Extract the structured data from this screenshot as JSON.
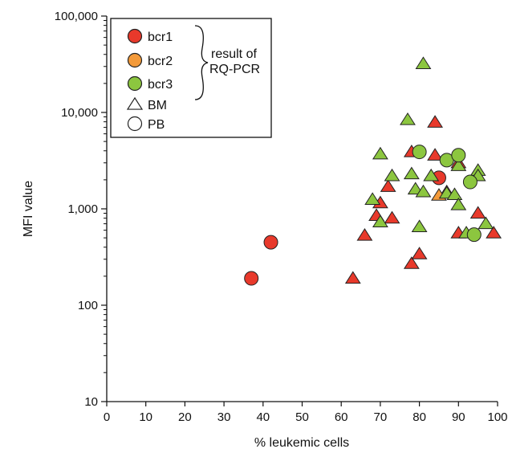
{
  "chart_data": {
    "type": "scatter",
    "title": "",
    "xlabel": "% leukemic cells",
    "ylabel": "MFI value",
    "xlim": [
      0,
      100
    ],
    "ylim": [
      10,
      100000
    ],
    "yscale": "log",
    "grid": false,
    "legend_position": "top-left",
    "x_ticks": [
      {
        "value": 0,
        "label": "0"
      },
      {
        "value": 10,
        "label": "10"
      },
      {
        "value": 20,
        "label": "20"
      },
      {
        "value": 30,
        "label": "30"
      },
      {
        "value": 40,
        "label": "40"
      },
      {
        "value": 50,
        "label": "50"
      },
      {
        "value": 60,
        "label": "60"
      },
      {
        "value": 70,
        "label": "70"
      },
      {
        "value": 80,
        "label": "80"
      },
      {
        "value": 90,
        "label": "90"
      },
      {
        "value": 100,
        "label": "100"
      }
    ],
    "y_ticks": [
      {
        "value": 10,
        "label": "10"
      },
      {
        "value": 100,
        "label": "100"
      },
      {
        "value": 1000,
        "label": "1,000"
      },
      {
        "value": 10000,
        "label": "10,000"
      },
      {
        "value": 100000,
        "label": "100,000"
      }
    ],
    "colors": {
      "bcr1": "#e8392b",
      "bcr2": "#f39a3a",
      "bcr3": "#8cc63f",
      "stroke": "#222222"
    },
    "legend": {
      "items": [
        {
          "label": "bcr1",
          "color": "#e8392b",
          "marker": "circle"
        },
        {
          "label": "bcr2",
          "color": "#f39a3a",
          "marker": "circle"
        },
        {
          "label": "bcr3",
          "color": "#8cc63f",
          "marker": "circle"
        },
        {
          "label": "BM",
          "color": "#ffffff",
          "marker": "triangle"
        },
        {
          "label": "PB",
          "color": "#ffffff",
          "marker": "circle"
        }
      ],
      "bracket_label_1": "result of",
      "bracket_label_2": "RQ-PCR"
    },
    "series": [
      {
        "name": "bcr1",
        "marker": "triangle",
        "color": "#e8392b",
        "points": [
          {
            "x": 63,
            "y": 190
          },
          {
            "x": 66,
            "y": 530
          },
          {
            "x": 69,
            "y": 850
          },
          {
            "x": 70,
            "y": 1150
          },
          {
            "x": 72,
            "y": 1700
          },
          {
            "x": 73,
            "y": 800
          },
          {
            "x": 78,
            "y": 3900
          },
          {
            "x": 78,
            "y": 270
          },
          {
            "x": 80,
            "y": 340
          },
          {
            "x": 84,
            "y": 3600
          },
          {
            "x": 84,
            "y": 7900
          },
          {
            "x": 87,
            "y": 1500
          },
          {
            "x": 90,
            "y": 3000
          },
          {
            "x": 90,
            "y": 560
          },
          {
            "x": 95,
            "y": 900
          },
          {
            "x": 99,
            "y": 560
          }
        ]
      },
      {
        "name": "bcr1",
        "marker": "circle",
        "color": "#e8392b",
        "points": [
          {
            "x": 37,
            "y": 190
          },
          {
            "x": 42,
            "y": 450
          },
          {
            "x": 85,
            "y": 2100
          }
        ]
      },
      {
        "name": "bcr2",
        "marker": "triangle",
        "color": "#f39a3a",
        "points": [
          {
            "x": 85,
            "y": 1380
          }
        ]
      },
      {
        "name": "bcr3",
        "marker": "triangle",
        "color": "#8cc63f",
        "points": [
          {
            "x": 68,
            "y": 1250
          },
          {
            "x": 70,
            "y": 3700
          },
          {
            "x": 70,
            "y": 730
          },
          {
            "x": 73,
            "y": 2200
          },
          {
            "x": 77,
            "y": 8400
          },
          {
            "x": 78,
            "y": 2300
          },
          {
            "x": 79,
            "y": 1600
          },
          {
            "x": 80,
            "y": 650
          },
          {
            "x": 81,
            "y": 32000
          },
          {
            "x": 81,
            "y": 1500
          },
          {
            "x": 83,
            "y": 2200
          },
          {
            "x": 87,
            "y": 1450
          },
          {
            "x": 89,
            "y": 1400
          },
          {
            "x": 90,
            "y": 1100
          },
          {
            "x": 90,
            "y": 2800
          },
          {
            "x": 92,
            "y": 560
          },
          {
            "x": 95,
            "y": 2500
          },
          {
            "x": 95,
            "y": 2200
          },
          {
            "x": 97,
            "y": 700
          }
        ]
      },
      {
        "name": "bcr3",
        "marker": "circle",
        "color": "#8cc63f",
        "points": [
          {
            "x": 80,
            "y": 3900
          },
          {
            "x": 87,
            "y": 3200
          },
          {
            "x": 90,
            "y": 3600
          },
          {
            "x": 93,
            "y": 1900
          },
          {
            "x": 94,
            "y": 540
          }
        ]
      }
    ]
  }
}
